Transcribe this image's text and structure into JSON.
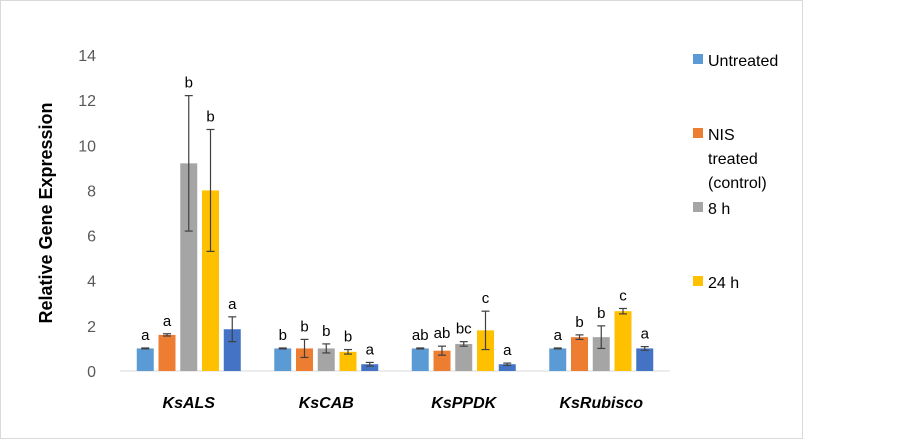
{
  "chart_data": {
    "type": "bar",
    "title": "",
    "xlabel": "",
    "ylabel": "Relative Gene Expression",
    "ylim": [
      0,
      14
    ],
    "yticks": [
      0,
      2,
      4,
      6,
      8,
      10,
      12,
      14
    ],
    "grid": false,
    "legend_position": "right",
    "categories": [
      "KsALS",
      "KsCAB",
      "KsPPDK",
      "KsRubisco"
    ],
    "series": [
      {
        "name": "Untreated",
        "color": "#5B9BD5",
        "values": [
          1.0,
          1.0,
          1.0,
          1.0
        ],
        "error": [
          0.02,
          0.02,
          0.02,
          0.02
        ],
        "letters": [
          "a",
          "b",
          "ab",
          "a"
        ]
      },
      {
        "name": "NIS treated (control)",
        "color": "#ED7D31",
        "values": [
          1.6,
          1.0,
          0.9,
          1.5
        ],
        "error": [
          0.05,
          0.4,
          0.2,
          0.1
        ],
        "letters": [
          "a",
          "b",
          "ab",
          "b"
        ]
      },
      {
        "name": "8 h",
        "color": "#A5A5A5",
        "values": [
          9.2,
          1.0,
          1.2,
          1.5
        ],
        "error": [
          3.0,
          0.2,
          0.1,
          0.5
        ],
        "letters": [
          "b",
          "b",
          "bc",
          "b"
        ]
      },
      {
        "name": "24 h",
        "color": "#FFC000",
        "values": [
          8.0,
          0.85,
          1.8,
          2.65
        ],
        "error": [
          2.7,
          0.1,
          0.85,
          0.12
        ],
        "letters": [
          "b",
          "b",
          "c",
          "c"
        ]
      },
      {
        "name": "",
        "color": "#4472C4",
        "values": [
          1.85,
          0.3,
          0.3,
          1.0
        ],
        "error": [
          0.55,
          0.08,
          0.05,
          0.08
        ],
        "letters": [
          "a",
          "a",
          "a",
          "a"
        ]
      }
    ],
    "legend": [
      {
        "lines": [
          "Untreated"
        ],
        "color": "#5B9BD5"
      },
      {
        "lines": [
          "NIS",
          "treated",
          "(control)"
        ],
        "color": "#ED7D31"
      },
      {
        "lines": [
          "8 h"
        ],
        "color": "#A5A5A5"
      },
      {
        "lines": [
          "24 h"
        ],
        "color": "#FFC000"
      }
    ]
  }
}
